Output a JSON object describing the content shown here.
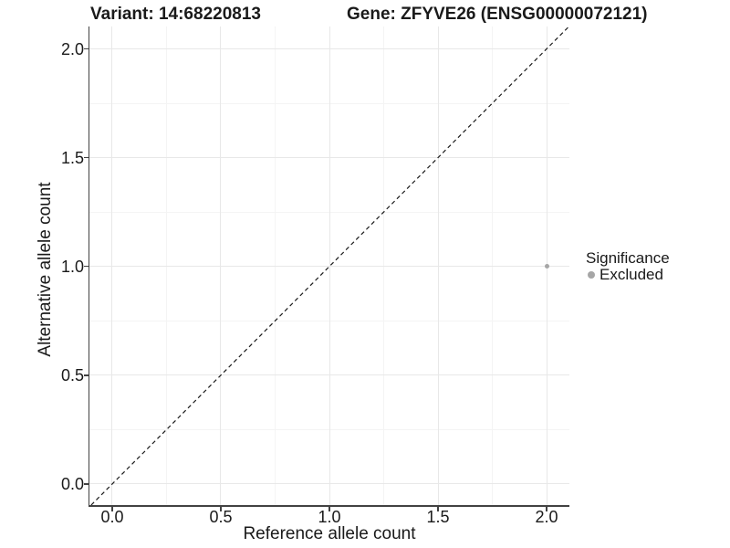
{
  "chart_data": {
    "type": "scatter",
    "title_left": "Variant: 14:68220813",
    "title_right": "Gene: ZFYVE26 (ENSG00000072121)",
    "xlabel": "Reference allele count",
    "ylabel": "Alternative allele count",
    "xlim": [
      -0.105,
      2.105
    ],
    "ylim": [
      -0.097,
      2.103
    ],
    "x_ticks": {
      "values": [
        0,
        0.5,
        1,
        1.5,
        2
      ],
      "labels": [
        "0.0",
        "0.5",
        "1.0",
        "1.5",
        "2.0"
      ]
    },
    "y_ticks": {
      "values": [
        0,
        0.5,
        1,
        1.5,
        2
      ],
      "labels": [
        "0.0",
        "0.5",
        "1.0",
        "1.5",
        "2.0"
      ]
    },
    "x_minor_ticks": [
      0.25,
      0.75,
      1.25,
      1.75
    ],
    "y_minor_ticks": [
      0.25,
      0.75,
      1.25,
      1.75
    ],
    "grid": "major+minor",
    "identity_line": {
      "equation": "y = x",
      "style": "dashed",
      "color": "#1a1a1a"
    },
    "series": [
      {
        "name": "Excluded",
        "color": "#a6a6a6",
        "points": [
          {
            "x": 2.0,
            "y": 1.0
          }
        ]
      }
    ],
    "legend": {
      "title": "Significance",
      "position": "right",
      "entries": [
        {
          "label": "Excluded",
          "color": "#a6a6a6"
        }
      ]
    }
  },
  "colors": {
    "background": "#ffffff",
    "grid_major": "#e8e8e8",
    "grid_minor": "#f4f4f4",
    "axis_line": "#424242",
    "text": "#1a1a1a",
    "point": "#a6a6a6"
  }
}
